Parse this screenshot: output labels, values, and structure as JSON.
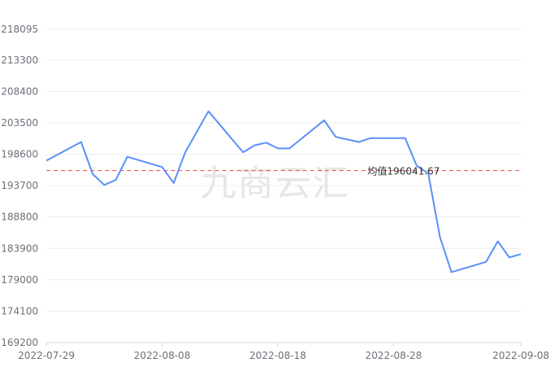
{
  "chart_data": {
    "type": "line",
    "title": "",
    "xlabel": "",
    "ylabel": "",
    "ylim": [
      169200,
      218095
    ],
    "y_ticks": [
      "169200",
      "174100",
      "179000",
      "183900",
      "188800",
      "193700",
      "198600",
      "203500",
      "208400",
      "213300",
      "218095"
    ],
    "x_ticks": [
      "2022-07-29",
      "2022-08-08",
      "2022-08-18",
      "2022-08-28",
      "2022-09-08"
    ],
    "grid": true,
    "series": [
      {
        "color": "#5b8ff9",
        "points": [
          {
            "x": "2022-07-29",
            "y": 197600
          },
          {
            "x": "2022-08-01",
            "y": 200500
          },
          {
            "x": "2022-08-02",
            "y": 195500
          },
          {
            "x": "2022-08-03",
            "y": 193800
          },
          {
            "x": "2022-08-04",
            "y": 194600
          },
          {
            "x": "2022-08-05",
            "y": 198200
          },
          {
            "x": "2022-08-08",
            "y": 196600
          },
          {
            "x": "2022-08-09",
            "y": 194100
          },
          {
            "x": "2022-08-10",
            "y": 198900
          },
          {
            "x": "2022-08-12",
            "y": 205300
          },
          {
            "x": "2022-08-15",
            "y": 198900
          },
          {
            "x": "2022-08-16",
            "y": 200000
          },
          {
            "x": "2022-08-17",
            "y": 200400
          },
          {
            "x": "2022-08-18",
            "y": 199500
          },
          {
            "x": "2022-08-19",
            "y": 199500
          },
          {
            "x": "2022-08-22",
            "y": 203900
          },
          {
            "x": "2022-08-23",
            "y": 201300
          },
          {
            "x": "2022-08-25",
            "y": 200500
          },
          {
            "x": "2022-08-26",
            "y": 201100
          },
          {
            "x": "2022-08-29",
            "y": 201100
          },
          {
            "x": "2022-08-30",
            "y": 196800
          },
          {
            "x": "2022-08-31",
            "y": 195600
          },
          {
            "x": "2022-09-01",
            "y": 185700
          },
          {
            "x": "2022-09-02",
            "y": 180200
          },
          {
            "x": "2022-09-05",
            "y": 181800
          },
          {
            "x": "2022-09-06",
            "y": 185000
          },
          {
            "x": "2022-09-07",
            "y": 182500
          },
          {
            "x": "2022-09-08",
            "y": 183000
          }
        ]
      }
    ],
    "average": {
      "value": 196041.67,
      "label": "均值196041.67",
      "color": "#e74c3c"
    },
    "watermark": "九商云汇"
  }
}
